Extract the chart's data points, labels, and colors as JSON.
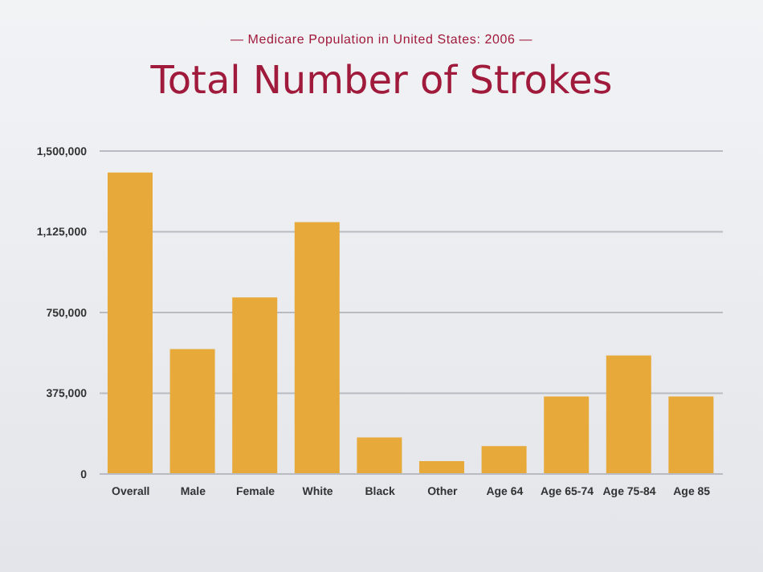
{
  "chart_data": {
    "type": "bar",
    "title": "Total Number of Strokes",
    "subtitle": "— Medicare Population in United States: 2006 —",
    "categories": [
      "Overall",
      "Male",
      "Female",
      "White",
      "Black",
      "Other",
      "Age 64",
      "Age 65-74",
      "Age 75-84",
      "Age 85"
    ],
    "values": [
      1400000,
      580000,
      820000,
      1170000,
      170000,
      60000,
      130000,
      360000,
      550000,
      360000
    ],
    "color": "#e6a93a",
    "ylim": [
      0,
      1500000
    ],
    "yticks": [
      0,
      {
        "value": 375000,
        "label": "375,000"
      },
      {
        "value": 750000,
        "label": "750,000"
      },
      {
        "value": 1125000,
        "label": "1,125,000"
      },
      {
        "value": 1500000,
        "label": "1,500,000"
      }
    ],
    "grid": "y"
  }
}
